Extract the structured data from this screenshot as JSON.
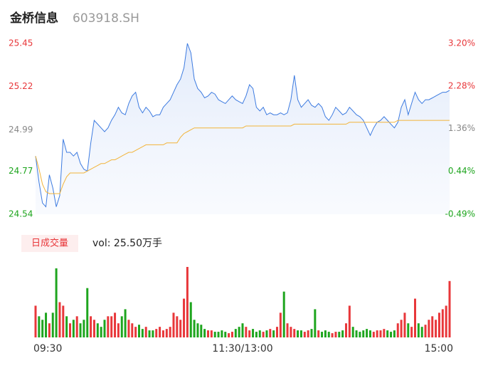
{
  "chart_data": [
    {
      "type": "line",
      "title": "金桥信息",
      "subtitle": "603918.SH",
      "x": [
        0,
        2,
        4,
        6,
        8,
        10,
        12,
        14,
        16,
        18,
        20,
        22,
        24,
        26,
        28,
        30,
        32,
        34,
        36,
        38,
        40,
        42,
        44,
        46,
        48,
        50,
        52,
        54,
        56,
        58,
        60,
        62,
        64,
        66,
        68,
        70,
        72,
        74,
        76,
        78,
        80,
        82,
        84,
        86,
        88,
        90,
        92,
        94,
        96,
        98,
        100,
        102,
        104,
        106,
        108,
        110,
        112,
        114,
        116,
        118,
        120,
        122,
        124,
        126,
        128,
        130,
        132,
        134,
        136,
        138,
        140,
        142,
        144,
        146,
        148,
        150,
        152,
        154,
        156,
        158,
        160,
        162,
        164,
        166,
        168,
        170,
        172,
        174,
        176,
        178,
        180,
        182,
        184,
        186,
        188,
        190,
        192,
        194,
        196,
        198,
        200,
        202,
        204,
        206,
        208,
        210,
        212,
        214,
        216,
        218,
        220,
        222,
        224,
        226,
        228,
        230,
        232,
        234,
        236,
        238,
        240
      ],
      "series": [
        {
          "color": "#3d7be0",
          "values": [
            24.85,
            24.71,
            24.6,
            24.58,
            24.75,
            24.68,
            24.58,
            24.64,
            24.94,
            24.87,
            24.87,
            24.85,
            24.87,
            24.81,
            24.78,
            24.77,
            24.92,
            25.04,
            25.02,
            25.0,
            24.98,
            25.0,
            25.04,
            25.07,
            25.11,
            25.08,
            25.07,
            25.13,
            25.17,
            25.19,
            25.11,
            25.08,
            25.11,
            25.09,
            25.06,
            25.07,
            25.07,
            25.11,
            25.13,
            25.15,
            25.19,
            25.23,
            25.26,
            25.32,
            25.45,
            25.4,
            25.26,
            25.21,
            25.19,
            25.16,
            25.17,
            25.19,
            25.18,
            25.15,
            25.14,
            25.13,
            25.15,
            25.17,
            25.15,
            25.14,
            25.13,
            25.17,
            25.23,
            25.21,
            25.11,
            25.09,
            25.11,
            25.07,
            25.08,
            25.07,
            25.07,
            25.08,
            25.07,
            25.08,
            25.15,
            25.28,
            25.15,
            25.11,
            25.13,
            25.15,
            25.12,
            25.11,
            25.13,
            25.11,
            25.06,
            25.04,
            25.07,
            25.11,
            25.09,
            25.07,
            25.08,
            25.11,
            25.09,
            25.07,
            25.06,
            25.04,
            25.0,
            24.96,
            25.0,
            25.03,
            25.04,
            25.06,
            25.04,
            25.02,
            25.0,
            25.03,
            25.11,
            25.15,
            25.07,
            25.13,
            25.19,
            25.15,
            25.13,
            25.15,
            25.15,
            25.16,
            25.17,
            25.18,
            25.19,
            25.19,
            25.2
          ]
        },
        {
          "color": "#f2b43a",
          "values": [
            24.85,
            24.78,
            24.7,
            24.66,
            24.65,
            24.65,
            24.65,
            24.65,
            24.7,
            24.74,
            24.76,
            24.76,
            24.76,
            24.76,
            24.76,
            24.77,
            24.78,
            24.79,
            24.8,
            24.81,
            24.81,
            24.82,
            24.83,
            24.83,
            24.84,
            24.85,
            24.86,
            24.87,
            24.87,
            24.88,
            24.89,
            24.9,
            24.91,
            24.91,
            24.91,
            24.91,
            24.91,
            24.91,
            24.92,
            24.92,
            24.92,
            24.92,
            24.95,
            24.97,
            24.98,
            24.99,
            25.0,
            25.0,
            25.0,
            25.0,
            25.0,
            25.0,
            25.0,
            25.0,
            25.0,
            25.0,
            25.0,
            25.0,
            25.0,
            25.0,
            25.0,
            25.01,
            25.01,
            25.01,
            25.01,
            25.01,
            25.01,
            25.01,
            25.01,
            25.01,
            25.01,
            25.01,
            25.01,
            25.01,
            25.01,
            25.02,
            25.02,
            25.02,
            25.02,
            25.02,
            25.02,
            25.02,
            25.02,
            25.02,
            25.02,
            25.02,
            25.02,
            25.02,
            25.02,
            25.02,
            25.02,
            25.03,
            25.03,
            25.03,
            25.03,
            25.03,
            25.03,
            25.03,
            25.03,
            25.03,
            25.03,
            25.03,
            25.03,
            25.03,
            25.03,
            25.04,
            25.04,
            25.04,
            25.04,
            25.04,
            25.04,
            25.04,
            25.04,
            25.04,
            25.04,
            25.04,
            25.04,
            25.04,
            25.04,
            25.04,
            25.04
          ]
        }
      ],
      "xlim": [
        0,
        240
      ],
      "ylim": [
        24.54,
        25.45
      ],
      "yticks": [
        24.54,
        24.77,
        24.99,
        25.22,
        25.45
      ],
      "y2lim": [
        -0.49,
        3.2
      ],
      "y2ticks": [
        {
          "value": -0.49,
          "label": "-0.49%"
        },
        {
          "value": 0.44,
          "label": "0.44%"
        },
        {
          "value": 1.36,
          "label": "1.36%"
        },
        {
          "value": 2.28,
          "label": "2.28%"
        },
        {
          "value": 3.2,
          "label": "3.20%"
        }
      ],
      "tick_colors": [
        "#1ea51e",
        "#1ea51e",
        "#888888",
        "#e8373a",
        "#e8373a"
      ]
    },
    {
      "type": "bar",
      "label": "日成交量",
      "text": "vol: 25.50万手",
      "x": [
        0,
        2,
        4,
        6,
        8,
        10,
        12,
        14,
        16,
        18,
        20,
        22,
        24,
        26,
        28,
        30,
        32,
        34,
        36,
        38,
        40,
        42,
        44,
        46,
        48,
        50,
        52,
        54,
        56,
        58,
        60,
        62,
        64,
        66,
        68,
        70,
        72,
        74,
        76,
        78,
        80,
        82,
        84,
        86,
        88,
        90,
        92,
        94,
        96,
        98,
        100,
        102,
        104,
        106,
        108,
        110,
        112,
        114,
        116,
        118,
        120,
        122,
        124,
        126,
        128,
        130,
        132,
        134,
        136,
        138,
        140,
        142,
        144,
        146,
        148,
        150,
        152,
        154,
        156,
        158,
        160,
        162,
        164,
        166,
        168,
        170,
        172,
        174,
        176,
        178,
        180,
        182,
        184,
        186,
        188,
        190,
        192,
        194,
        196,
        198,
        200,
        202,
        204,
        206,
        208,
        210,
        212,
        214,
        216,
        218,
        220,
        222,
        224,
        226,
        228,
        230,
        232,
        234,
        236,
        238,
        240
      ],
      "values": [
        45,
        30,
        25,
        35,
        20,
        35,
        98,
        50,
        45,
        30,
        20,
        25,
        30,
        20,
        25,
        70,
        30,
        25,
        20,
        15,
        25,
        30,
        30,
        35,
        20,
        30,
        40,
        25,
        20,
        15,
        18,
        12,
        15,
        10,
        10,
        12,
        15,
        10,
        12,
        15,
        35,
        30,
        25,
        55,
        100,
        50,
        25,
        20,
        18,
        12,
        10,
        10,
        8,
        8,
        10,
        8,
        6,
        8,
        12,
        15,
        20,
        15,
        10,
        12,
        8,
        10,
        8,
        10,
        12,
        10,
        15,
        35,
        65,
        20,
        15,
        12,
        10,
        10,
        8,
        10,
        12,
        40,
        10,
        8,
        10,
        8,
        6,
        8,
        8,
        10,
        20,
        45,
        15,
        10,
        8,
        10,
        12,
        10,
        8,
        10,
        10,
        12,
        10,
        8,
        10,
        20,
        25,
        35,
        20,
        15,
        55,
        20,
        15,
        18,
        25,
        30,
        25,
        35,
        40,
        45,
        80
      ],
      "up_color": "#e8373a",
      "down_color": "#1ea51e",
      "xlim": [
        0,
        240
      ],
      "ylim": [
        0,
        100
      ],
      "xticks": [
        {
          "value": 0,
          "label": "09:30"
        },
        {
          "value": 120,
          "label": "11:30/13:00"
        },
        {
          "value": 240,
          "label": "15:00"
        }
      ]
    }
  ]
}
